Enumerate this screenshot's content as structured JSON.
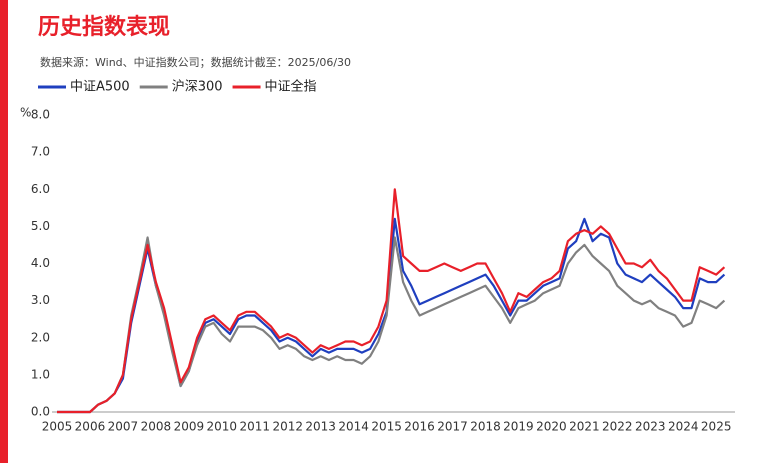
{
  "chart_data": {
    "type": "line",
    "title": "历史指数表现",
    "subtitle": "数据来源：Wind、中证指数公司；数据统计截至：2025/06/30",
    "y_label": "%",
    "categories": [
      "2005",
      null,
      null,
      null,
      "2006",
      null,
      null,
      null,
      "2007",
      null,
      null,
      null,
      "2008",
      null,
      null,
      null,
      "2009",
      null,
      null,
      null,
      "2010",
      null,
      null,
      null,
      "2011",
      null,
      null,
      null,
      "2012",
      null,
      null,
      null,
      "2013",
      null,
      null,
      null,
      "2014",
      null,
      null,
      null,
      "2015",
      null,
      null,
      null,
      "2016",
      null,
      null,
      null,
      "2017",
      null,
      null,
      null,
      "2018",
      null,
      null,
      null,
      "2019",
      null,
      null,
      null,
      "2020",
      null,
      null,
      null,
      "2021",
      null,
      null,
      null,
      "2022",
      null,
      null,
      null,
      "2023",
      null,
      null,
      null,
      "2024",
      null,
      null,
      null,
      "2025",
      null
    ],
    "series": [
      {
        "name": "中证A500",
        "color": "#1f3fbf",
        "values": [
          0.0,
          0.0,
          0.0,
          0.0,
          0.0,
          0.2,
          0.3,
          0.5,
          0.9,
          2.4,
          3.4,
          4.4,
          3.4,
          2.7,
          1.7,
          0.7,
          1.1,
          1.9,
          2.4,
          2.5,
          2.3,
          2.1,
          2.5,
          2.6,
          2.6,
          2.4,
          2.2,
          1.9,
          2.0,
          1.9,
          1.7,
          1.5,
          1.7,
          1.6,
          1.7,
          1.7,
          1.7,
          1.6,
          1.7,
          2.1,
          2.7,
          5.2,
          3.8,
          3.4,
          2.9,
          3.0,
          3.1,
          3.2,
          3.3,
          3.4,
          3.5,
          3.6,
          3.7,
          3.4,
          3.0,
          2.6,
          3.0,
          3.0,
          3.2,
          3.4,
          3.5,
          3.6,
          4.4,
          4.6,
          5.2,
          4.6,
          4.8,
          4.7,
          4.0,
          3.7,
          3.6,
          3.5,
          3.7,
          3.5,
          3.3,
          3.1,
          2.8,
          2.8,
          3.6,
          3.5,
          3.5,
          3.7
        ]
      },
      {
        "name": "沪深300",
        "color": "#808080",
        "values": [
          0.0,
          0.0,
          0.0,
          0.0,
          0.0,
          0.2,
          0.3,
          0.5,
          1.0,
          2.6,
          3.6,
          4.7,
          3.4,
          2.6,
          1.6,
          0.7,
          1.1,
          1.8,
          2.3,
          2.4,
          2.1,
          1.9,
          2.3,
          2.3,
          2.3,
          2.2,
          2.0,
          1.7,
          1.8,
          1.7,
          1.5,
          1.4,
          1.5,
          1.4,
          1.5,
          1.4,
          1.4,
          1.3,
          1.5,
          1.9,
          2.6,
          4.7,
          3.5,
          3.0,
          2.6,
          2.7,
          2.8,
          2.9,
          3.0,
          3.1,
          3.2,
          3.3,
          3.4,
          3.1,
          2.8,
          2.4,
          2.8,
          2.9,
          3.0,
          3.2,
          3.3,
          3.4,
          4.0,
          4.3,
          4.5,
          4.2,
          4.0,
          3.8,
          3.4,
          3.2,
          3.0,
          2.9,
          3.0,
          2.8,
          2.7,
          2.6,
          2.3,
          2.4,
          3.0,
          2.9,
          2.8,
          3.0
        ]
      },
      {
        "name": "中证全指",
        "color": "#e8202a",
        "values": [
          0.0,
          0.0,
          0.0,
          0.0,
          0.0,
          0.2,
          0.3,
          0.5,
          1.0,
          2.5,
          3.5,
          4.5,
          3.5,
          2.8,
          1.8,
          0.8,
          1.2,
          2.0,
          2.5,
          2.6,
          2.4,
          2.2,
          2.6,
          2.7,
          2.7,
          2.5,
          2.3,
          2.0,
          2.1,
          2.0,
          1.8,
          1.6,
          1.8,
          1.7,
          1.8,
          1.9,
          1.9,
          1.8,
          1.9,
          2.3,
          3.0,
          6.0,
          4.2,
          4.0,
          3.8,
          3.8,
          3.9,
          4.0,
          3.9,
          3.8,
          3.9,
          4.0,
          4.0,
          3.6,
          3.2,
          2.7,
          3.2,
          3.1,
          3.3,
          3.5,
          3.6,
          3.8,
          4.6,
          4.8,
          4.9,
          4.8,
          5.0,
          4.8,
          4.4,
          4.0,
          4.0,
          3.9,
          4.1,
          3.8,
          3.6,
          3.3,
          3.0,
          3.0,
          3.9,
          3.8,
          3.7,
          3.9
        ]
      }
    ],
    "ylim": [
      0,
      8
    ],
    "yticks": [
      {
        "value": 0,
        "label": "0.0"
      },
      {
        "value": 1,
        "label": "1.0"
      },
      {
        "value": 2,
        "label": "2.0"
      },
      {
        "value": 3,
        "label": "3.0"
      },
      {
        "value": 4,
        "label": "4.0"
      },
      {
        "value": 5,
        "label": "5.0"
      },
      {
        "value": 6,
        "label": "6.0"
      },
      {
        "value": 7,
        "label": "7.0"
      },
      {
        "value": 8,
        "label": "8.0"
      }
    ],
    "grid": false,
    "legend": "top"
  }
}
